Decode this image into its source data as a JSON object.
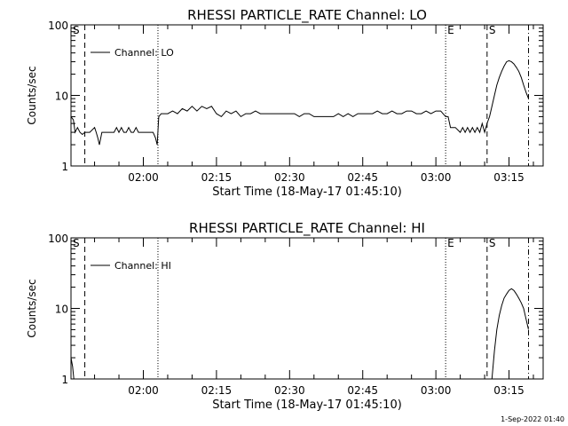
{
  "footer_date": "1-Sep-2022 01:40",
  "chart_data": [
    {
      "type": "line",
      "title": "RHESSI PARTICLE_RATE Channel: LO",
      "xlabel": "Start Time (18-May-17 01:45:10)",
      "ylabel": "Counts/sec",
      "yscale": "log",
      "ylim": [
        1,
        100
      ],
      "xlim": [
        "01:45:10",
        "03:22:00"
      ],
      "yticks": [
        {
          "v": 1,
          "label": "1"
        },
        {
          "v": 10,
          "label": "10"
        },
        {
          "v": 100,
          "label": "100"
        }
      ],
      "xticks": [
        {
          "t": "02:00:00",
          "label": "02:00"
        },
        {
          "t": "02:15:00",
          "label": "02:15"
        },
        {
          "t": "02:30:00",
          "label": "02:30"
        },
        {
          "t": "02:45:00",
          "label": "02:45"
        },
        {
          "t": "03:00:00",
          "label": "03:00"
        },
        {
          "t": "03:15:00",
          "label": "03:15"
        }
      ],
      "legend": {
        "label": "Channel: LO",
        "position": "top-left"
      },
      "markers": [
        {
          "t": "01:45:10",
          "label": "S",
          "style": "solid"
        },
        {
          "t": "01:48:00",
          "label": "",
          "style": "dashed"
        },
        {
          "t": "02:03:00",
          "label": "",
          "style": "dotted"
        },
        {
          "t": "03:02:00",
          "label": "E",
          "style": "dotted"
        },
        {
          "t": "03:10:30",
          "label": "S",
          "style": "dashed"
        },
        {
          "t": "03:19:00",
          "label": "",
          "style": "dashdot"
        }
      ],
      "series": [
        {
          "x": [
            "01:45:10",
            "01:45:40",
            "01:46:00",
            "01:46:30",
            "01:47:00",
            "01:47:30",
            "01:48:00",
            "01:49:00",
            "01:50:00",
            "01:50:20",
            "01:50:40",
            "01:51:00",
            "01:51:30",
            "01:52:00",
            "01:53:00",
            "01:54:00",
            "01:54:30",
            "01:55:00",
            "01:55:30",
            "01:56:00",
            "01:56:30",
            "01:57:00",
            "01:57:30",
            "01:58:00",
            "01:58:30",
            "01:59:00",
            "01:59:30",
            "02:00:00",
            "02:00:30",
            "02:01:00",
            "02:01:30",
            "02:02:00",
            "02:02:30",
            "02:02:50",
            "02:03:10",
            "02:03:40",
            "02:05:00",
            "02:06:00",
            "02:07:00",
            "02:08:00",
            "02:09:00",
            "02:10:00",
            "02:11:00",
            "02:12:00",
            "02:13:00",
            "02:14:00",
            "02:15:00",
            "02:16:00",
            "02:17:00",
            "02:18:00",
            "02:19:00",
            "02:20:00",
            "02:21:00",
            "02:22:00",
            "02:23:00",
            "02:24:00",
            "02:25:00",
            "02:26:00",
            "02:27:00",
            "02:28:00",
            "02:29:00",
            "02:30:00",
            "02:31:00",
            "02:32:00",
            "02:33:00",
            "02:34:00",
            "02:35:00",
            "02:36:00",
            "02:37:00",
            "02:38:00",
            "02:39:00",
            "02:40:00",
            "02:41:00",
            "02:42:00",
            "02:43:00",
            "02:44:00",
            "02:45:00",
            "02:46:00",
            "02:47:00",
            "02:48:00",
            "02:49:00",
            "02:50:00",
            "02:51:00",
            "02:52:00",
            "02:53:00",
            "02:54:00",
            "02:55:00",
            "02:56:00",
            "02:57:00",
            "02:58:00",
            "02:59:00",
            "03:00:00",
            "03:01:00",
            "03:02:00",
            "03:02:30",
            "03:03:00",
            "03:04:00",
            "03:05:00",
            "03:05:30",
            "03:06:00",
            "03:06:30",
            "03:07:00",
            "03:07:30",
            "03:08:00",
            "03:08:30",
            "03:09:00",
            "03:09:30",
            "03:10:00",
            "03:10:30",
            "03:11:00",
            "03:11:30",
            "03:12:00",
            "03:12:30",
            "03:13:00",
            "03:13:30",
            "03:14:00",
            "03:14:30",
            "03:15:00",
            "03:15:30",
            "03:16:00",
            "03:16:30",
            "03:17:00",
            "03:17:30",
            "03:18:00",
            "03:18:30",
            "03:19:00"
          ],
          "values": [
            5,
            4.5,
            3,
            3.5,
            3,
            2.8,
            3,
            3,
            3.5,
            3,
            2.5,
            2,
            3,
            3,
            3,
            3,
            3.5,
            3,
            3.5,
            3,
            3,
            3.5,
            3,
            3,
            3.5,
            3,
            3,
            3,
            3,
            3,
            3,
            3,
            2.5,
            2,
            5,
            5.5,
            5.5,
            6,
            5.5,
            6.5,
            6,
            7,
            6,
            7,
            6.5,
            7,
            5.5,
            5,
            6,
            5.5,
            6,
            5,
            5.5,
            5.5,
            6,
            5.5,
            5.5,
            5.5,
            5.5,
            5.5,
            5.5,
            5.5,
            5.5,
            5,
            5.5,
            5.5,
            5,
            5,
            5,
            5,
            5,
            5.5,
            5,
            5.5,
            5,
            5.5,
            5.5,
            5.5,
            5.5,
            6,
            5.5,
            5.5,
            6,
            5.5,
            5.5,
            6,
            6,
            5.5,
            5.5,
            6,
            5.5,
            6,
            6,
            5,
            5,
            3.5,
            3.5,
            3,
            3.5,
            3,
            3.5,
            3,
            3.5,
            3,
            3.5,
            3,
            4,
            3,
            4,
            5,
            7,
            10,
            14,
            18,
            22,
            26,
            30,
            31,
            30,
            28,
            25,
            22,
            18,
            14,
            11,
            9
          ]
        }
      ]
    },
    {
      "type": "line",
      "title": "RHESSI PARTICLE_RATE Channel: HI",
      "xlabel": "Start Time (18-May-17 01:45:10)",
      "ylabel": "Counts/sec",
      "yscale": "log",
      "ylim": [
        1,
        100
      ],
      "xlim": [
        "01:45:10",
        "03:22:00"
      ],
      "yticks": [
        {
          "v": 1,
          "label": "1"
        },
        {
          "v": 10,
          "label": "10"
        },
        {
          "v": 100,
          "label": "100"
        }
      ],
      "xticks": [
        {
          "t": "02:00:00",
          "label": "02:00"
        },
        {
          "t": "02:15:00",
          "label": "02:15"
        },
        {
          "t": "02:30:00",
          "label": "02:30"
        },
        {
          "t": "02:45:00",
          "label": "02:45"
        },
        {
          "t": "03:00:00",
          "label": "03:00"
        },
        {
          "t": "03:15:00",
          "label": "03:15"
        }
      ],
      "legend": {
        "label": "Channel: HI",
        "position": "top-left"
      },
      "markers": [
        {
          "t": "01:45:10",
          "label": "S",
          "style": "solid"
        },
        {
          "t": "01:48:00",
          "label": "",
          "style": "dashed"
        },
        {
          "t": "02:03:00",
          "label": "",
          "style": "dotted"
        },
        {
          "t": "03:02:00",
          "label": "E",
          "style": "dotted"
        },
        {
          "t": "03:10:30",
          "label": "S",
          "style": "dashed"
        },
        {
          "t": "03:19:00",
          "label": "",
          "style": "dashdot"
        }
      ],
      "series": [
        {
          "x": [
            "01:45:10",
            "01:45:30",
            "01:45:45"
          ],
          "values": [
            2,
            1.5,
            1
          ]
        },
        {
          "x": [
            "03:11:30",
            "03:12:00",
            "03:12:30",
            "03:13:00",
            "03:13:30",
            "03:14:00",
            "03:14:30",
            "03:15:00",
            "03:15:30",
            "03:16:00",
            "03:16:30",
            "03:17:00",
            "03:17:30",
            "03:18:00",
            "03:18:30",
            "03:19:00"
          ],
          "values": [
            1,
            2.5,
            5,
            8,
            11,
            14,
            16,
            18,
            19,
            18,
            16,
            14,
            12,
            10,
            7,
            5
          ]
        }
      ]
    }
  ]
}
